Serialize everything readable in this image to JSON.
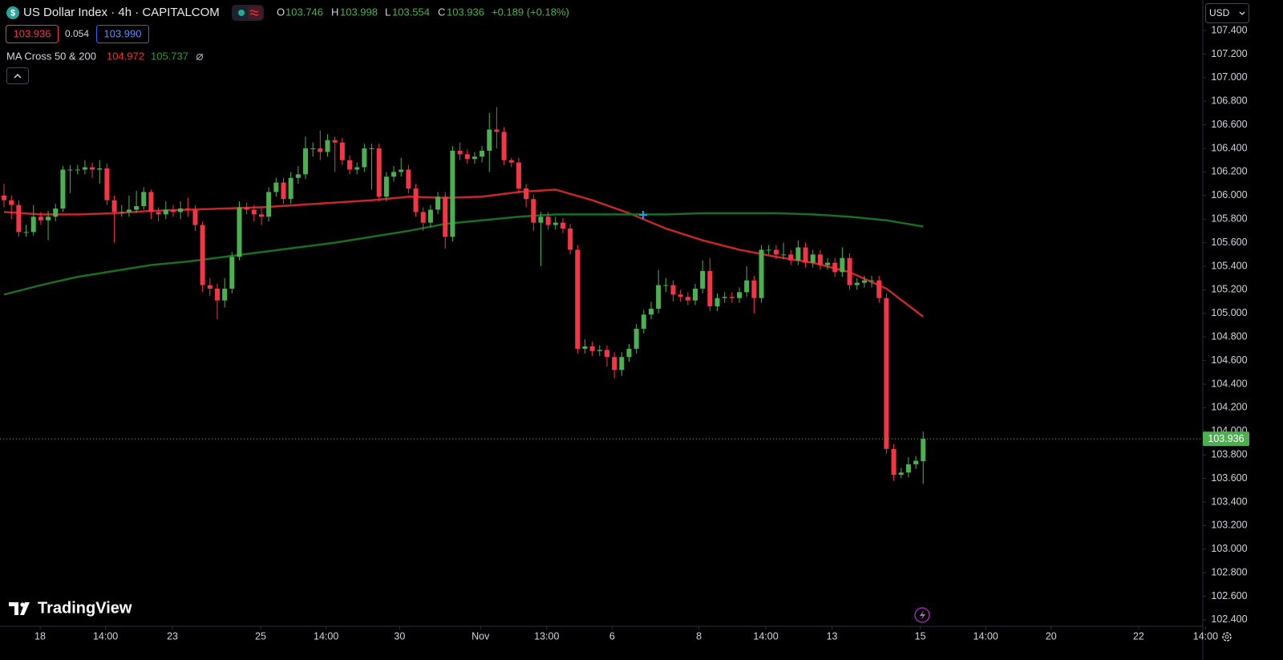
{
  "header": {
    "symbol": "US Dollar Index · 4h · CAPITALCOM",
    "ohlc_labels": [
      "O",
      "H",
      "L",
      "C"
    ],
    "change": "+0.189 (+0.18%)",
    "spread": "0.054",
    "ask": "103.990",
    "currency": "USD",
    "brand": "TradingView"
  },
  "chart_data": {
    "type": "candlestick",
    "up_color": "#4caf50",
    "down_color": "#f23645",
    "grid": false,
    "open": [
      106.0,
      105.96,
      105.92,
      105.69,
      105.69,
      105.82,
      105.79,
      105.82,
      105.89,
      106.22,
      106.22,
      106.22,
      106.24,
      106.22,
      106.23,
      105.96,
      105.86,
      105.86,
      105.88,
      105.91,
      106.03,
      105.86,
      105.84,
      105.88,
      105.86,
      105.89,
      105.88,
      105.75,
      105.24,
      105.21,
      105.11,
      105.21,
      105.48,
      105.9,
      105.88,
      105.84,
      105.82,
      106.03,
      106.11,
      105.97,
      106.15,
      106.18,
      106.4,
      106.4,
      106.37,
      106.47,
      106.45,
      106.3,
      106.22,
      106.24,
      106.4,
      106.4,
      105.99,
      106.16,
      106.2,
      106.22,
      106.06,
      105.86,
      105.77,
      105.88,
      105.99,
      105.65,
      106.38,
      106.35,
      106.31,
      106.33,
      106.38,
      106.56,
      106.54,
      106.3,
      106.28,
      106.06,
      105.97,
      105.77,
      105.82,
      105.75,
      105.77,
      105.72,
      105.54,
      104.7,
      104.72,
      104.68,
      104.69,
      104.63,
      104.52,
      104.63,
      104.7,
      104.87,
      104.99,
      105.04,
      105.24,
      105.24,
      105.16,
      105.14,
      105.11,
      105.21,
      105.36,
      105.06,
      105.13,
      105.14,
      105.13,
      105.18,
      105.28,
      105.13,
      105.54,
      105.54,
      105.5,
      105.5,
      105.45,
      105.56,
      105.43,
      105.5,
      105.41,
      105.43,
      105.35,
      105.47,
      105.24,
      105.26,
      105.28,
      105.28,
      105.13,
      103.85,
      103.63,
      103.65,
      103.72,
      103.746
    ],
    "high": [
      106.1,
      106.0,
      105.96,
      105.75,
      105.92,
      105.86,
      105.87,
      105.93,
      106.25,
      106.26,
      106.26,
      106.3,
      106.28,
      106.3,
      106.27,
      106.0,
      105.92,
      106.0,
      106.04,
      106.07,
      106.05,
      105.9,
      105.95,
      105.92,
      105.95,
      105.98,
      105.92,
      105.78,
      105.3,
      105.25,
      105.3,
      105.52,
      105.95,
      105.94,
      105.92,
      105.9,
      106.07,
      106.15,
      106.15,
      106.2,
      106.25,
      106.5,
      106.45,
      106.55,
      106.52,
      106.5,
      106.49,
      106.34,
      106.28,
      106.44,
      106.44,
      106.44,
      106.2,
      106.25,
      106.32,
      106.26,
      106.1,
      105.9,
      105.92,
      106.03,
      106.03,
      106.42,
      106.45,
      106.39,
      106.37,
      106.42,
      106.7,
      106.75,
      106.58,
      106.32,
      106.32,
      106.1,
      106.01,
      105.86,
      105.86,
      105.82,
      105.81,
      105.76,
      105.58,
      104.78,
      104.76,
      104.73,
      104.73,
      104.67,
      104.67,
      104.74,
      104.91,
      105.03,
      105.1,
      105.37,
      105.3,
      105.28,
      105.2,
      105.18,
      105.25,
      105.45,
      105.47,
      105.17,
      105.18,
      105.18,
      105.22,
      105.4,
      105.32,
      105.58,
      105.58,
      105.58,
      105.6,
      105.54,
      105.62,
      105.6,
      105.54,
      105.54,
      105.47,
      105.47,
      105.56,
      105.51,
      105.3,
      105.32,
      105.32,
      105.32,
      105.17,
      103.89,
      103.69,
      103.78,
      103.79,
      103.998
    ],
    "low": [
      105.9,
      105.8,
      105.65,
      105.65,
      105.66,
      105.75,
      105.62,
      105.78,
      105.86,
      106.02,
      106.18,
      106.18,
      106.15,
      106.1,
      105.92,
      105.6,
      105.82,
      105.82,
      105.85,
      105.88,
      105.8,
      105.78,
      105.8,
      105.82,
      105.8,
      105.82,
      105.7,
      105.18,
      105.15,
      104.95,
      105.05,
      105.17,
      105.45,
      105.84,
      105.78,
      105.75,
      105.78,
      105.99,
      105.93,
      105.93,
      106.1,
      106.14,
      106.33,
      106.3,
      106.33,
      106.2,
      106.26,
      106.18,
      106.18,
      106.2,
      106.05,
      105.95,
      105.95,
      106.12,
      106.16,
      106.02,
      105.82,
      105.7,
      105.73,
      105.84,
      105.55,
      105.61,
      106.3,
      106.27,
      106.27,
      106.28,
      106.2,
      106.4,
      106.26,
      106.24,
      106.02,
      105.9,
      105.7,
      105.4,
      105.71,
      105.71,
      105.68,
      105.5,
      104.66,
      104.66,
      104.64,
      104.64,
      104.55,
      104.45,
      104.47,
      104.59,
      104.66,
      104.83,
      104.95,
      105.0,
      105.18,
      105.1,
      105.1,
      105.07,
      105.07,
      105.17,
      105.02,
      105.02,
      105.09,
      105.09,
      105.09,
      105.14,
      105.0,
      105.09,
      105.5,
      105.46,
      105.46,
      105.41,
      105.41,
      105.39,
      105.39,
      105.37,
      105.37,
      105.31,
      105.31,
      105.2,
      105.2,
      105.22,
      105.22,
      105.09,
      103.81,
      103.58,
      103.6,
      103.61,
      103.68,
      103.554
    ],
    "close": [
      105.96,
      105.92,
      105.69,
      105.69,
      105.82,
      105.79,
      105.82,
      105.89,
      106.22,
      106.22,
      106.22,
      106.24,
      106.22,
      106.23,
      105.96,
      105.86,
      105.86,
      105.88,
      105.91,
      106.03,
      105.86,
      105.84,
      105.88,
      105.86,
      105.89,
      105.88,
      105.75,
      105.24,
      105.21,
      105.11,
      105.21,
      105.48,
      105.9,
      105.88,
      105.84,
      105.82,
      106.03,
      106.11,
      105.97,
      106.15,
      106.18,
      106.4,
      106.4,
      106.37,
      106.47,
      106.45,
      106.3,
      106.22,
      106.24,
      106.4,
      106.4,
      105.99,
      106.16,
      106.2,
      106.22,
      106.06,
      105.86,
      105.77,
      105.88,
      105.99,
      105.65,
      106.38,
      106.35,
      106.31,
      106.33,
      106.38,
      106.56,
      106.54,
      106.3,
      106.28,
      106.06,
      105.97,
      105.77,
      105.82,
      105.75,
      105.77,
      105.72,
      105.54,
      104.7,
      104.72,
      104.68,
      104.69,
      104.63,
      104.52,
      104.63,
      104.7,
      104.87,
      104.99,
      105.04,
      105.24,
      105.24,
      105.16,
      105.14,
      105.11,
      105.21,
      105.36,
      105.06,
      105.13,
      105.14,
      105.13,
      105.18,
      105.28,
      105.13,
      105.54,
      105.54,
      105.5,
      105.5,
      105.45,
      105.56,
      105.43,
      105.5,
      105.41,
      105.43,
      105.35,
      105.47,
      105.24,
      105.26,
      105.28,
      105.28,
      105.13,
      103.85,
      103.63,
      103.65,
      103.72,
      103.75,
      103.936
    ],
    "ma": {
      "name": "MA Cross 50 & 200",
      "x": [
        0,
        5,
        10,
        15,
        20,
        25,
        30,
        35,
        40,
        45,
        50,
        55,
        60,
        65,
        70,
        75,
        80,
        85,
        90,
        95,
        100,
        105,
        110,
        115,
        120,
        125
      ],
      "series": [
        {
          "color": "#c62828",
          "legend_color": "#e53935",
          "values": [
            105.86,
            105.84,
            105.84,
            105.85,
            105.87,
            105.88,
            105.89,
            105.9,
            105.92,
            105.94,
            105.96,
            105.99,
            105.98,
            105.99,
            106.03,
            106.05,
            105.96,
            105.85,
            105.72,
            105.62,
            105.54,
            105.48,
            105.43,
            105.35,
            105.21,
            104.972
          ]
        },
        {
          "color": "#1b6e22",
          "legend_color": "#2e9b35",
          "values": [
            105.16,
            105.24,
            105.31,
            105.36,
            105.41,
            105.44,
            105.48,
            105.52,
            105.56,
            105.6,
            105.65,
            105.7,
            105.76,
            105.79,
            105.82,
            105.84,
            105.84,
            105.84,
            105.84,
            105.85,
            105.85,
            105.85,
            105.84,
            105.82,
            105.79,
            105.737
          ]
        }
      ]
    },
    "xlim": [
      -0.55,
      163.03
    ],
    "xticks": [
      {
        "value": 4.9,
        "label": "18"
      },
      {
        "value": 13.8,
        "label": "14:00"
      },
      {
        "value": 22.9,
        "label": "23"
      },
      {
        "value": 34.9,
        "label": "25"
      },
      {
        "value": 43.8,
        "label": "14:00"
      },
      {
        "value": 53.8,
        "label": "30"
      },
      {
        "value": 64.8,
        "label": "Nov"
      },
      {
        "value": 73.8,
        "label": "13:00"
      },
      {
        "value": 82.7,
        "label": "6"
      },
      {
        "value": 94.5,
        "label": "8"
      },
      {
        "value": 103.6,
        "label": "14:00"
      },
      {
        "value": 112.6,
        "label": "13"
      },
      {
        "value": 124.6,
        "label": "15"
      },
      {
        "value": 133.5,
        "label": "14:00"
      },
      {
        "value": 142.4,
        "label": "20"
      },
      {
        "value": 154.3,
        "label": "22"
      },
      {
        "value": 163.4,
        "label": "14:00"
      }
    ],
    "ylim": [
      102.352,
      107.659
    ],
    "yticks": [
      {
        "value": 107.4,
        "label": "107.400"
      },
      {
        "value": 107.2,
        "label": "107.200"
      },
      {
        "value": 107.0,
        "label": "107.000"
      },
      {
        "value": 106.8,
        "label": "106.800"
      },
      {
        "value": 106.6,
        "label": "106.600"
      },
      {
        "value": 106.4,
        "label": "106.400"
      },
      {
        "value": 106.2,
        "label": "106.200"
      },
      {
        "value": 106.0,
        "label": "106.000"
      },
      {
        "value": 105.8,
        "label": "105.800"
      },
      {
        "value": 105.6,
        "label": "105.600"
      },
      {
        "value": 105.4,
        "label": "105.400"
      },
      {
        "value": 105.2,
        "label": "105.200"
      },
      {
        "value": 105.0,
        "label": "105.000"
      },
      {
        "value": 104.8,
        "label": "104.800"
      },
      {
        "value": 104.6,
        "label": "104.600"
      },
      {
        "value": 104.4,
        "label": "104.400"
      },
      {
        "value": 104.2,
        "label": "104.200"
      },
      {
        "value": 104.0,
        "label": "104.000"
      },
      {
        "value": 103.8,
        "label": "103.800"
      },
      {
        "value": 103.6,
        "label": "103.600"
      },
      {
        "value": 103.4,
        "label": "103.400"
      },
      {
        "value": 103.2,
        "label": "103.200"
      },
      {
        "value": 103.0,
        "label": "103.000"
      },
      {
        "value": 102.8,
        "label": "102.800"
      },
      {
        "value": 102.6,
        "label": "102.600"
      },
      {
        "value": 102.4,
        "label": "102.400"
      }
    ]
  }
}
